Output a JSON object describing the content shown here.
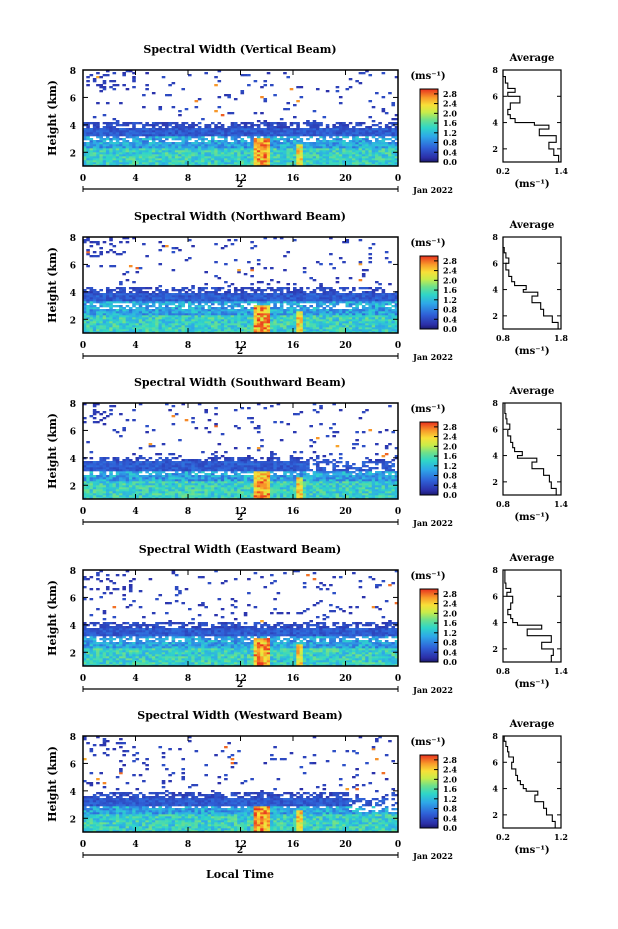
{
  "figure": {
    "xlabel_bottom": "Local Time",
    "date_label": "Jan 2022",
    "day_label": "2",
    "colorbar_unit": "(ms⁻¹)",
    "avg_title": "Average",
    "avg_xlabel": "(ms⁻¹)",
    "ylabel": "Height (km)"
  },
  "chart_data": [
    {
      "type": "heatmap",
      "title": "Spectral Width (Vertical Beam)",
      "xlabel": "",
      "ylabel": "Height (km)",
      "x_ticks": [
        "0",
        "4",
        "8",
        "12",
        "16",
        "20",
        "0"
      ],
      "y_ticks": [
        "2",
        "4",
        "6",
        "8"
      ],
      "xlim": [
        0,
        24
      ],
      "ylim": [
        1,
        8
      ],
      "colorbar": {
        "ticks": [
          "0.0",
          "0.4",
          "0.8",
          "1.2",
          "1.6",
          "2.0",
          "2.4",
          "2.8"
        ],
        "range": [
          0,
          3.0
        ]
      },
      "average_profile": {
        "title": "Average",
        "xlabel": "(ms⁻¹)",
        "x_ticks": [
          "0.2",
          "1.4"
        ],
        "xlim": [
          0.2,
          1.4
        ],
        "y_ticks": [
          "2",
          "4",
          "6",
          "8"
        ],
        "heights": [
          1.0,
          1.5,
          2.0,
          2.5,
          3.0,
          3.5,
          3.8,
          4.0,
          4.3,
          4.6,
          5.0,
          5.5,
          6.0,
          6.3,
          6.6,
          7.0,
          7.5,
          8.0
        ],
        "values": [
          1.35,
          1.35,
          1.25,
          1.15,
          1.3,
          0.95,
          1.15,
          0.85,
          0.45,
          0.35,
          0.3,
          0.35,
          0.55,
          0.3,
          0.45,
          0.3,
          0.25,
          0.2
        ]
      }
    },
    {
      "type": "heatmap",
      "title": "Spectral Width (Northward Beam)",
      "xlabel": "",
      "ylabel": "Height (km)",
      "x_ticks": [
        "0",
        "4",
        "8",
        "12",
        "16",
        "20",
        "0"
      ],
      "y_ticks": [
        "2",
        "4",
        "6",
        "8"
      ],
      "xlim": [
        0,
        24
      ],
      "ylim": [
        1,
        8
      ],
      "colorbar": {
        "ticks": [
          "0.0",
          "0.4",
          "0.8",
          "1.2",
          "1.6",
          "2.0",
          "2.4",
          "2.8"
        ],
        "range": [
          0,
          3.0
        ]
      },
      "average_profile": {
        "title": "Average",
        "xlabel": "(ms⁻¹)",
        "x_ticks": [
          "0.8",
          "1.8"
        ],
        "xlim": [
          0.8,
          1.8
        ],
        "y_ticks": [
          "2",
          "4",
          "6",
          "8"
        ],
        "heights": [
          1.0,
          1.5,
          2.0,
          2.5,
          3.0,
          3.5,
          3.8,
          4.0,
          4.3,
          4.6,
          5.0,
          5.5,
          6.0,
          6.4,
          6.8,
          7.2,
          7.6,
          8.0
        ],
        "values": [
          1.75,
          1.75,
          1.65,
          1.5,
          1.45,
          1.3,
          1.4,
          1.15,
          1.2,
          1.0,
          0.95,
          0.9,
          0.85,
          0.9,
          0.85,
          0.82,
          0.8,
          0.8
        ]
      }
    },
    {
      "type": "heatmap",
      "title": "Spectral Width (Southward Beam)",
      "xlabel": "",
      "ylabel": "Height (km)",
      "x_ticks": [
        "0",
        "4",
        "8",
        "12",
        "16",
        "20",
        "0"
      ],
      "y_ticks": [
        "2",
        "4",
        "6",
        "8"
      ],
      "xlim": [
        0,
        24
      ],
      "ylim": [
        1,
        8
      ],
      "colorbar": {
        "ticks": [
          "0.0",
          "0.4",
          "0.8",
          "1.2",
          "1.6",
          "2.0",
          "2.4",
          "2.8"
        ],
        "range": [
          0,
          3.0
        ]
      },
      "average_profile": {
        "title": "Average",
        "xlabel": "(ms⁻¹)",
        "x_ticks": [
          "0.8",
          "1.4"
        ],
        "xlim": [
          0.8,
          1.4
        ],
        "y_ticks": [
          "2",
          "4",
          "6",
          "8"
        ],
        "heights": [
          1.0,
          1.5,
          2.0,
          2.5,
          3.0,
          3.5,
          3.8,
          4.0,
          4.3,
          4.6,
          5.0,
          5.5,
          6.0,
          6.4,
          6.8,
          7.2,
          7.6,
          8.0
        ],
        "values": [
          1.38,
          1.35,
          1.3,
          1.28,
          1.22,
          1.1,
          1.15,
          0.95,
          1.0,
          0.92,
          0.9,
          0.88,
          0.85,
          0.87,
          0.84,
          0.83,
          0.82,
          0.82
        ]
      }
    },
    {
      "type": "heatmap",
      "title": "Spectral Width (Eastward Beam)",
      "xlabel": "",
      "ylabel": "Height (km)",
      "x_ticks": [
        "0",
        "4",
        "8",
        "12",
        "16",
        "20",
        "0"
      ],
      "y_ticks": [
        "2",
        "4",
        "6",
        "8"
      ],
      "xlim": [
        0,
        24
      ],
      "ylim": [
        1,
        8
      ],
      "colorbar": {
        "ticks": [
          "0.0",
          "0.4",
          "0.8",
          "1.2",
          "1.6",
          "2.0",
          "2.4",
          "2.8"
        ],
        "range": [
          0,
          3.0
        ]
      },
      "average_profile": {
        "title": "Average",
        "xlabel": "(ms⁻¹)",
        "x_ticks": [
          "0.8",
          "1.4"
        ],
        "xlim": [
          0.8,
          1.4
        ],
        "y_ticks": [
          "2",
          "4",
          "6",
          "8"
        ],
        "heights": [
          1.0,
          1.5,
          2.0,
          2.5,
          3.0,
          3.5,
          3.8,
          4.0,
          4.3,
          4.6,
          5.0,
          5.5,
          6.0,
          6.3,
          6.6,
          7.0,
          7.5,
          8.0
        ],
        "values": [
          1.35,
          1.3,
          1.32,
          1.2,
          1.3,
          1.05,
          1.2,
          0.95,
          0.9,
          0.88,
          0.85,
          0.88,
          0.9,
          0.84,
          0.88,
          0.83,
          0.82,
          0.82
        ]
      }
    },
    {
      "type": "heatmap",
      "title": "Spectral Width (Westward Beam)",
      "xlabel": "Local Time",
      "ylabel": "Height (km)",
      "x_ticks": [
        "0",
        "4",
        "8",
        "12",
        "16",
        "20",
        "0"
      ],
      "y_ticks": [
        "2",
        "4",
        "6",
        "8"
      ],
      "xlim": [
        0,
        24
      ],
      "ylim": [
        1,
        8
      ],
      "colorbar": {
        "ticks": [
          "0.0",
          "0.4",
          "0.8",
          "1.2",
          "1.6",
          "2.0",
          "2.4",
          "2.8"
        ],
        "range": [
          0,
          3.0
        ]
      },
      "average_profile": {
        "title": "Average",
        "xlabel": "(ms⁻¹)",
        "x_ticks": [
          "0.2",
          "1.2"
        ],
        "xlim": [
          0.2,
          1.2
        ],
        "y_ticks": [
          "2",
          "4",
          "6",
          "8"
        ],
        "heights": [
          1.0,
          1.5,
          2.0,
          2.5,
          3.0,
          3.5,
          3.8,
          4.0,
          4.3,
          4.6,
          5.0,
          5.5,
          6.0,
          6.4,
          6.8,
          7.2,
          7.6,
          8.0
        ],
        "values": [
          1.15,
          1.1,
          1.05,
          0.95,
          0.9,
          0.75,
          0.8,
          0.6,
          0.55,
          0.5,
          0.45,
          0.42,
          0.35,
          0.38,
          0.3,
          0.28,
          0.25,
          0.22
        ]
      }
    }
  ]
}
